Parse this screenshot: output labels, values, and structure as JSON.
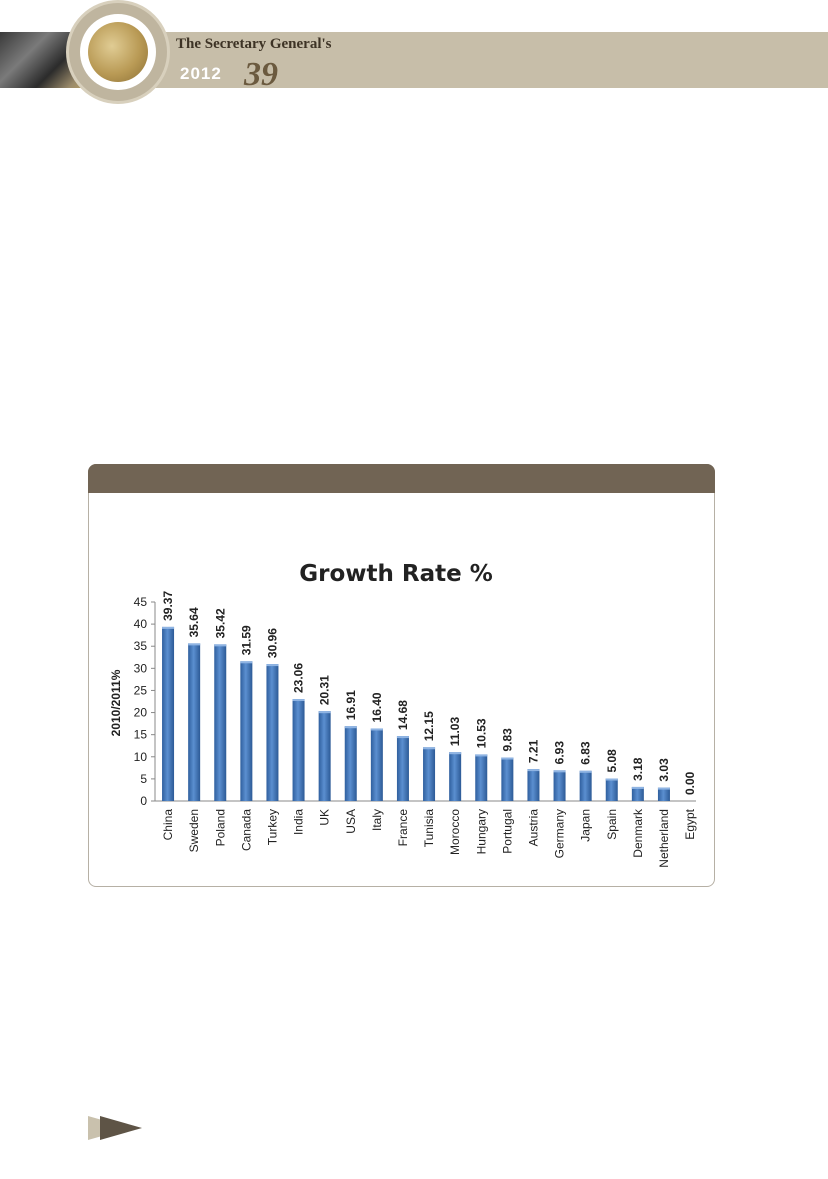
{
  "header": {
    "title": "The Secretary General's",
    "year": "2012",
    "edition": "39"
  },
  "chart_data": {
    "type": "bar",
    "title": "Growth Rate %",
    "xlabel": "",
    "ylabel": "2010/2011%",
    "ylim": [
      0,
      45
    ],
    "yticks": [
      0,
      5,
      10,
      15,
      20,
      25,
      30,
      35,
      40,
      45
    ],
    "grid": false,
    "legend": "none",
    "bar_color": "#4f81bd",
    "categories": [
      "China",
      "Sweden",
      "Poland",
      "Canada",
      "Turkey",
      "India",
      "UK",
      "USA",
      "Italy",
      "France",
      "Tunisia",
      "Morocco",
      "Hungary",
      "Portugal",
      "Austria",
      "Germany",
      "Japan",
      "Spain",
      "Denmark",
      "Netherland",
      "Egypt"
    ],
    "values": [
      39.37,
      35.64,
      35.42,
      31.59,
      30.96,
      23.06,
      20.31,
      16.91,
      16.4,
      14.68,
      12.15,
      11.03,
      10.53,
      9.83,
      7.21,
      6.93,
      6.83,
      5.08,
      3.18,
      3.03,
      0.0
    ],
    "value_labels": [
      "39.37",
      "35.64",
      "35.42",
      "31.59",
      "30.96",
      "23.06",
      "20.31",
      "16.91",
      "16.40",
      "14.68",
      "12.15",
      "11.03",
      "10.53",
      "9.83",
      "7.21",
      "6.93",
      "6.83",
      "5.08",
      "3.18",
      "3.03",
      "0.00"
    ]
  }
}
